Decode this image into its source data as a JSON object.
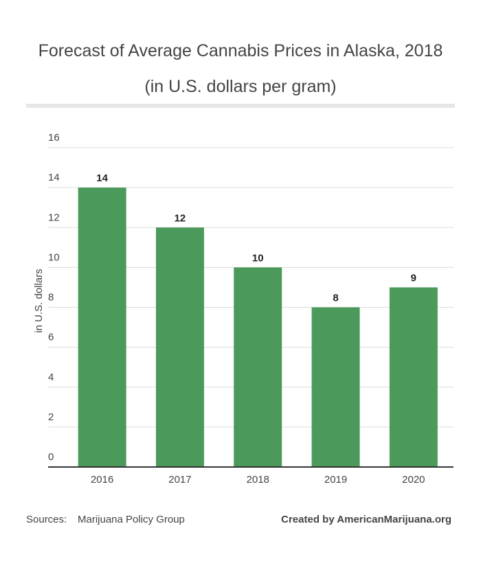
{
  "chart_data": {
    "type": "bar",
    "title": "Forecast of Average Cannabis Prices in Alaska, 2018 (in U.S. dollars per gram)",
    "y_label": "in U.S. dollars",
    "categories": [
      "2016",
      "2017",
      "2018",
      "2019",
      "2020"
    ],
    "values": [
      14,
      12,
      10,
      8,
      9
    ],
    "color": "#4c9a5b",
    "ylim": [
      0,
      16
    ],
    "yticks": [
      0,
      2,
      4,
      6,
      8,
      10,
      12,
      14,
      16
    ],
    "grid": true,
    "source_label": "Sources:",
    "source": "Marijuana Policy Group",
    "credit": "Created by AmericanMarijuana.org"
  }
}
